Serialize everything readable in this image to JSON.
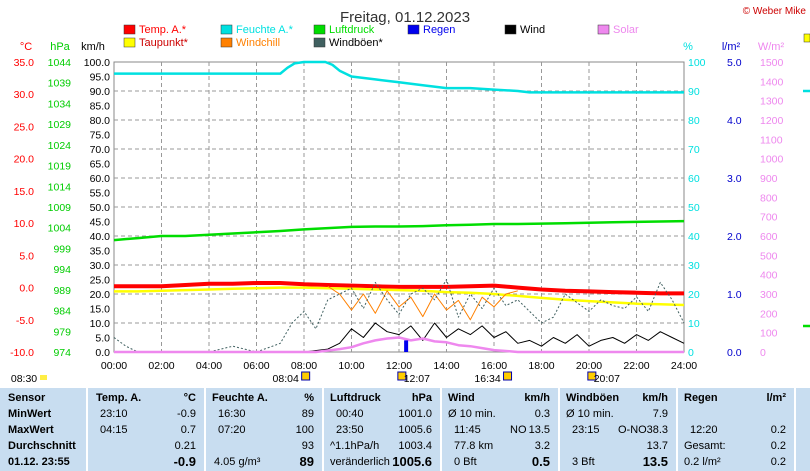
{
  "header": {
    "title": "Freitag, 01.12.2023",
    "credit": "© Weber Mike"
  },
  "chart_data": {
    "type": "line",
    "title": "Freitag, 01.12.2023",
    "x_ticks": [
      "00:00",
      "02:00",
      "04:00",
      "06:00",
      "08:00",
      "10:00",
      "12:00",
      "14:00",
      "16:00",
      "18:00",
      "20:00",
      "22:00",
      "24:00"
    ],
    "axes": {
      "temp": {
        "label": "°C",
        "color": "#ff0000",
        "range": [
          -10,
          35
        ],
        "ticks": [
          "35.0",
          "30.0",
          "25.0",
          "20.0",
          "15.0",
          "10.0",
          "5.0",
          "0.0",
          "-5.0",
          "-10.0"
        ]
      },
      "press": {
        "label": "hPa",
        "color": "#00cc00",
        "range": [
          974,
          1044
        ],
        "ticks": [
          "1044",
          "1039",
          "1034",
          "1029",
          "1024",
          "1019",
          "1014",
          "1009",
          "1004",
          "999",
          "994",
          "989",
          "984",
          "979",
          "974"
        ]
      },
      "wind": {
        "label": "km/h",
        "color": "#000000",
        "range": [
          0,
          100
        ],
        "ticks": [
          "100.0",
          "95.0",
          "90.0",
          "85.0",
          "80.0",
          "75.0",
          "70.0",
          "65.0",
          "60.0",
          "55.0",
          "50.0",
          "45.0",
          "40.0",
          "35.0",
          "30.0",
          "25.0",
          "20.0",
          "15.0",
          "10.0",
          "5.0",
          "0.0"
        ]
      },
      "hum": {
        "label": "%",
        "color": "#00e0e0",
        "range": [
          0,
          100
        ],
        "ticks": [
          "100",
          "90",
          "80",
          "70",
          "60",
          "50",
          "40",
          "30",
          "20",
          "10",
          "0"
        ]
      },
      "rain": {
        "label": "l/m²",
        "color": "#0000cc",
        "range": [
          0,
          5
        ],
        "ticks": [
          "5.0",
          "4.0",
          "3.0",
          "2.0",
          "1.0",
          "0.0"
        ]
      },
      "solar": {
        "label": "W/m²",
        "color": "#ee88ee",
        "range": [
          0,
          1500
        ],
        "ticks": [
          "1500",
          "1400",
          "1300",
          "1200",
          "1100",
          "1000",
          "900",
          "800",
          "700",
          "600",
          "500",
          "400",
          "300",
          "200",
          "100",
          "0"
        ]
      }
    },
    "legend": [
      {
        "name": "Temp. A.*",
        "color": "#ff0000"
      },
      {
        "name": "Feuchte A.*",
        "color": "#00e0e0"
      },
      {
        "name": "Luftdruck",
        "color": "#00dd00"
      },
      {
        "name": "Regen",
        "color": "#0000ee"
      },
      {
        "name": "Wind",
        "color": "#000000"
      },
      {
        "name": "Solar",
        "color": "#ee88ee"
      },
      {
        "name": "Taupunkt*",
        "color": "#ffff00"
      },
      {
        "name": "Windchill",
        "color": "#ff8000"
      },
      {
        "name": "Windböen*",
        "color": "#406060"
      }
    ],
    "series": [
      {
        "name": "Feuchte A.*",
        "axis": "hum",
        "color": "#00e0e0",
        "x": [
          0,
          1,
          2,
          3,
          4,
          5,
          6,
          7,
          7.3,
          7.6,
          8,
          8.5,
          8.9,
          9.2,
          9.5,
          10,
          11,
          12,
          13,
          14,
          15,
          16,
          17,
          17.5,
          18,
          19,
          20,
          21,
          22,
          23,
          24
        ],
        "y": [
          96,
          96,
          96,
          96,
          96,
          96,
          96,
          96,
          98,
          99.5,
          100,
          100,
          100,
          99,
          97,
          95,
          94,
          93,
          92,
          91,
          91,
          90.5,
          90,
          89.5,
          89.5,
          89.5,
          89.5,
          89.5,
          89.5,
          89.5,
          89.5
        ]
      },
      {
        "name": "Luftdruck",
        "axis": "press",
        "color": "#00dd00",
        "x": [
          0,
          1,
          2,
          3,
          4,
          5,
          6,
          7,
          8,
          9,
          10,
          11,
          12,
          13,
          14,
          15,
          16,
          17,
          18,
          19,
          20,
          21,
          22,
          23,
          24
        ],
        "y": [
          1001.0,
          1001.5,
          1002.0,
          1002.0,
          1002.3,
          1002.6,
          1002.9,
          1003.2,
          1003.6,
          1003.9,
          1004.2,
          1004.3,
          1004.3,
          1004.4,
          1004.6,
          1004.7,
          1004.9,
          1004.9,
          1005.0,
          1005.1,
          1005.2,
          1005.3,
          1005.4,
          1005.5,
          1005.6
        ]
      },
      {
        "name": "Temp. A.*",
        "axis": "temp",
        "color": "#ff0000",
        "x": [
          0,
          1,
          2,
          3,
          4,
          5,
          6,
          7,
          8,
          9,
          10,
          11,
          12,
          13,
          14,
          15,
          16,
          17,
          18,
          19,
          20,
          21,
          22,
          23,
          24
        ],
        "y": [
          0.2,
          0.2,
          0.2,
          0.4,
          0.6,
          0.6,
          0.7,
          0.7,
          0.5,
          0.4,
          0.3,
          0.2,
          0.1,
          0.1,
          0.1,
          0.2,
          0.3,
          0.0,
          -0.3,
          -0.5,
          -0.6,
          -0.7,
          -0.8,
          -0.9,
          -0.9
        ]
      },
      {
        "name": "Taupunkt*",
        "axis": "temp",
        "color": "#ffff00",
        "x": [
          0,
          1,
          2,
          3,
          4,
          5,
          6,
          7,
          8,
          9,
          10,
          11,
          12,
          13,
          14,
          15,
          16,
          17,
          18,
          19,
          20,
          21,
          22,
          23,
          24
        ],
        "y": [
          -0.6,
          -0.6,
          -0.5,
          -0.4,
          -0.3,
          -0.2,
          -0.1,
          0.0,
          0.0,
          -0.1,
          -0.2,
          -0.3,
          -0.4,
          -0.5,
          -0.7,
          -0.8,
          -1.0,
          -1.3,
          -1.6,
          -1.9,
          -2.1,
          -2.3,
          -2.5,
          -2.6,
          -2.7
        ]
      },
      {
        "name": "Windchill",
        "axis": "temp",
        "color": "#ff8000",
        "x": [
          9,
          9.5,
          10,
          10.5,
          11,
          11.5,
          12,
          12.5,
          13,
          13.5,
          14,
          14.5,
          15,
          15.5,
          16,
          16.5,
          17
        ],
        "y": [
          0.2,
          -1.0,
          -3.5,
          -1.0,
          -4.0,
          -0.5,
          -3.0,
          -1.5,
          -4.5,
          -1.0,
          -3.5,
          -2.0,
          -5.0,
          -1.5,
          -3.0,
          -1.0,
          -0.5
        ]
      },
      {
        "name": "Windböen*",
        "axis": "wind",
        "color": "#406060",
        "x": [
          0,
          0.5,
          1,
          2,
          3,
          4,
          5,
          6,
          7,
          7.5,
          8,
          8.5,
          9,
          9.5,
          10,
          10.5,
          11,
          11.5,
          12,
          12.5,
          13,
          13.5,
          14,
          14.5,
          15,
          15.5,
          16,
          16.5,
          17,
          17.5,
          18,
          18.5,
          19,
          19.5,
          20,
          20.5,
          21,
          21.5,
          22,
          22.5,
          23,
          23.5,
          24
        ],
        "y": [
          5,
          2,
          0,
          0,
          0,
          0,
          2,
          0,
          3,
          10,
          14,
          8,
          18,
          20,
          22,
          15,
          24,
          18,
          13,
          20,
          22,
          18,
          25,
          12,
          20,
          15,
          22,
          16,
          18,
          14,
          10,
          12,
          20,
          17,
          14,
          18,
          16,
          15,
          19,
          14,
          24,
          18,
          10
        ]
      },
      {
        "name": "Wind",
        "axis": "wind",
        "color": "#000000",
        "x": [
          0,
          2,
          4,
          6,
          8,
          9,
          9.5,
          10,
          10.5,
          11,
          11.5,
          12,
          12.5,
          13,
          13.5,
          14,
          14.5,
          15,
          15.5,
          16,
          16.5,
          17,
          17.5,
          18,
          18.5,
          19,
          19.5,
          20,
          20.5,
          21,
          21.5,
          22,
          22.5,
          23,
          23.5,
          24
        ],
        "y": [
          0,
          0,
          0,
          0,
          0,
          1,
          3,
          8,
          5,
          10,
          7,
          6,
          9,
          4,
          10,
          5,
          8,
          6,
          9,
          5,
          7,
          3,
          4,
          2,
          5,
          3,
          6,
          2,
          4,
          5,
          3,
          6,
          4,
          7,
          5,
          3
        ]
      },
      {
        "name": "Solar",
        "axis": "solar",
        "color": "#ee88ee",
        "x": [
          0,
          8.5,
          9.5,
          10,
          10.5,
          11,
          11.5,
          12,
          12.5,
          13,
          13.5,
          14,
          14.5,
          15,
          15.5,
          16,
          16.5,
          17,
          24
        ],
        "y": [
          0,
          0,
          15,
          25,
          45,
          60,
          70,
          75,
          60,
          70,
          55,
          50,
          35,
          30,
          20,
          10,
          5,
          0,
          0
        ]
      },
      {
        "name": "Regen",
        "axis": "rain",
        "color": "#0000ee",
        "type": "bar",
        "x": [
          12.3
        ],
        "y": [
          0.2
        ]
      }
    ],
    "sun_events": [
      {
        "label": "08:30",
        "hour": -1.5,
        "row": 0
      },
      {
        "label": "08:04",
        "hour": 8.07,
        "row": 0
      },
      {
        "label": "12:07",
        "hour": 12.12,
        "row": 0
      },
      {
        "label": "16:34",
        "hour": 16.57,
        "row": 0
      },
      {
        "label": "20:07",
        "hour": 20.12,
        "row": 0
      }
    ]
  },
  "stats": {
    "sensor": {
      "header": "Sensor",
      "rows": [
        "MinWert",
        "MaxWert",
        "Durchschnitt",
        "01.12. 23:55"
      ]
    },
    "temp": {
      "header": "Temp. A.",
      "unit": "°C",
      "rows": [
        [
          "23:10",
          "-0.9"
        ],
        [
          "04:15",
          "0.7"
        ],
        [
          "",
          "0.21"
        ],
        [
          "",
          "-0.9"
        ]
      ]
    },
    "hum": {
      "header": "Feuchte A.",
      "unit": "%",
      "rows": [
        [
          "16:30",
          "89"
        ],
        [
          "07:20",
          "100"
        ],
        [
          "",
          "93"
        ],
        [
          "4.05 g/m³",
          "89"
        ]
      ]
    },
    "press": {
      "header": "Luftdruck",
      "unit": "hPa",
      "rows": [
        [
          "00:40",
          "1001.0"
        ],
        [
          "23:50",
          "1005.6"
        ],
        [
          "^1.1hPa/h",
          "1003.4"
        ],
        [
          "veränderlich",
          "1005.6"
        ]
      ]
    },
    "wind": {
      "header": "Wind",
      "unit": "km/h",
      "rows": [
        [
          "Ø 10 min.",
          "",
          "0.3"
        ],
        [
          "11:45",
          "NO",
          "13.5"
        ],
        [
          "77.8 km",
          "",
          "3.2"
        ],
        [
          "0 Bft",
          "",
          "0.5"
        ]
      ]
    },
    "gust": {
      "header": "Windböen",
      "unit": "km/h",
      "rows": [
        [
          "Ø 10 min.",
          "",
          "7.9"
        ],
        [
          "23:15",
          "O-NO",
          "38.3"
        ],
        [
          "",
          "",
          "13.7"
        ],
        [
          "3 Bft",
          "",
          "13.5"
        ]
      ]
    },
    "rain": {
      "header": "Regen",
      "unit": "l/m²",
      "rows": [
        [
          "",
          ""
        ],
        [
          "12:20",
          "0.2"
        ],
        [
          "Gesamt:",
          "0.2"
        ],
        [
          "0.2 l/m²",
          "0.2"
        ]
      ]
    }
  }
}
